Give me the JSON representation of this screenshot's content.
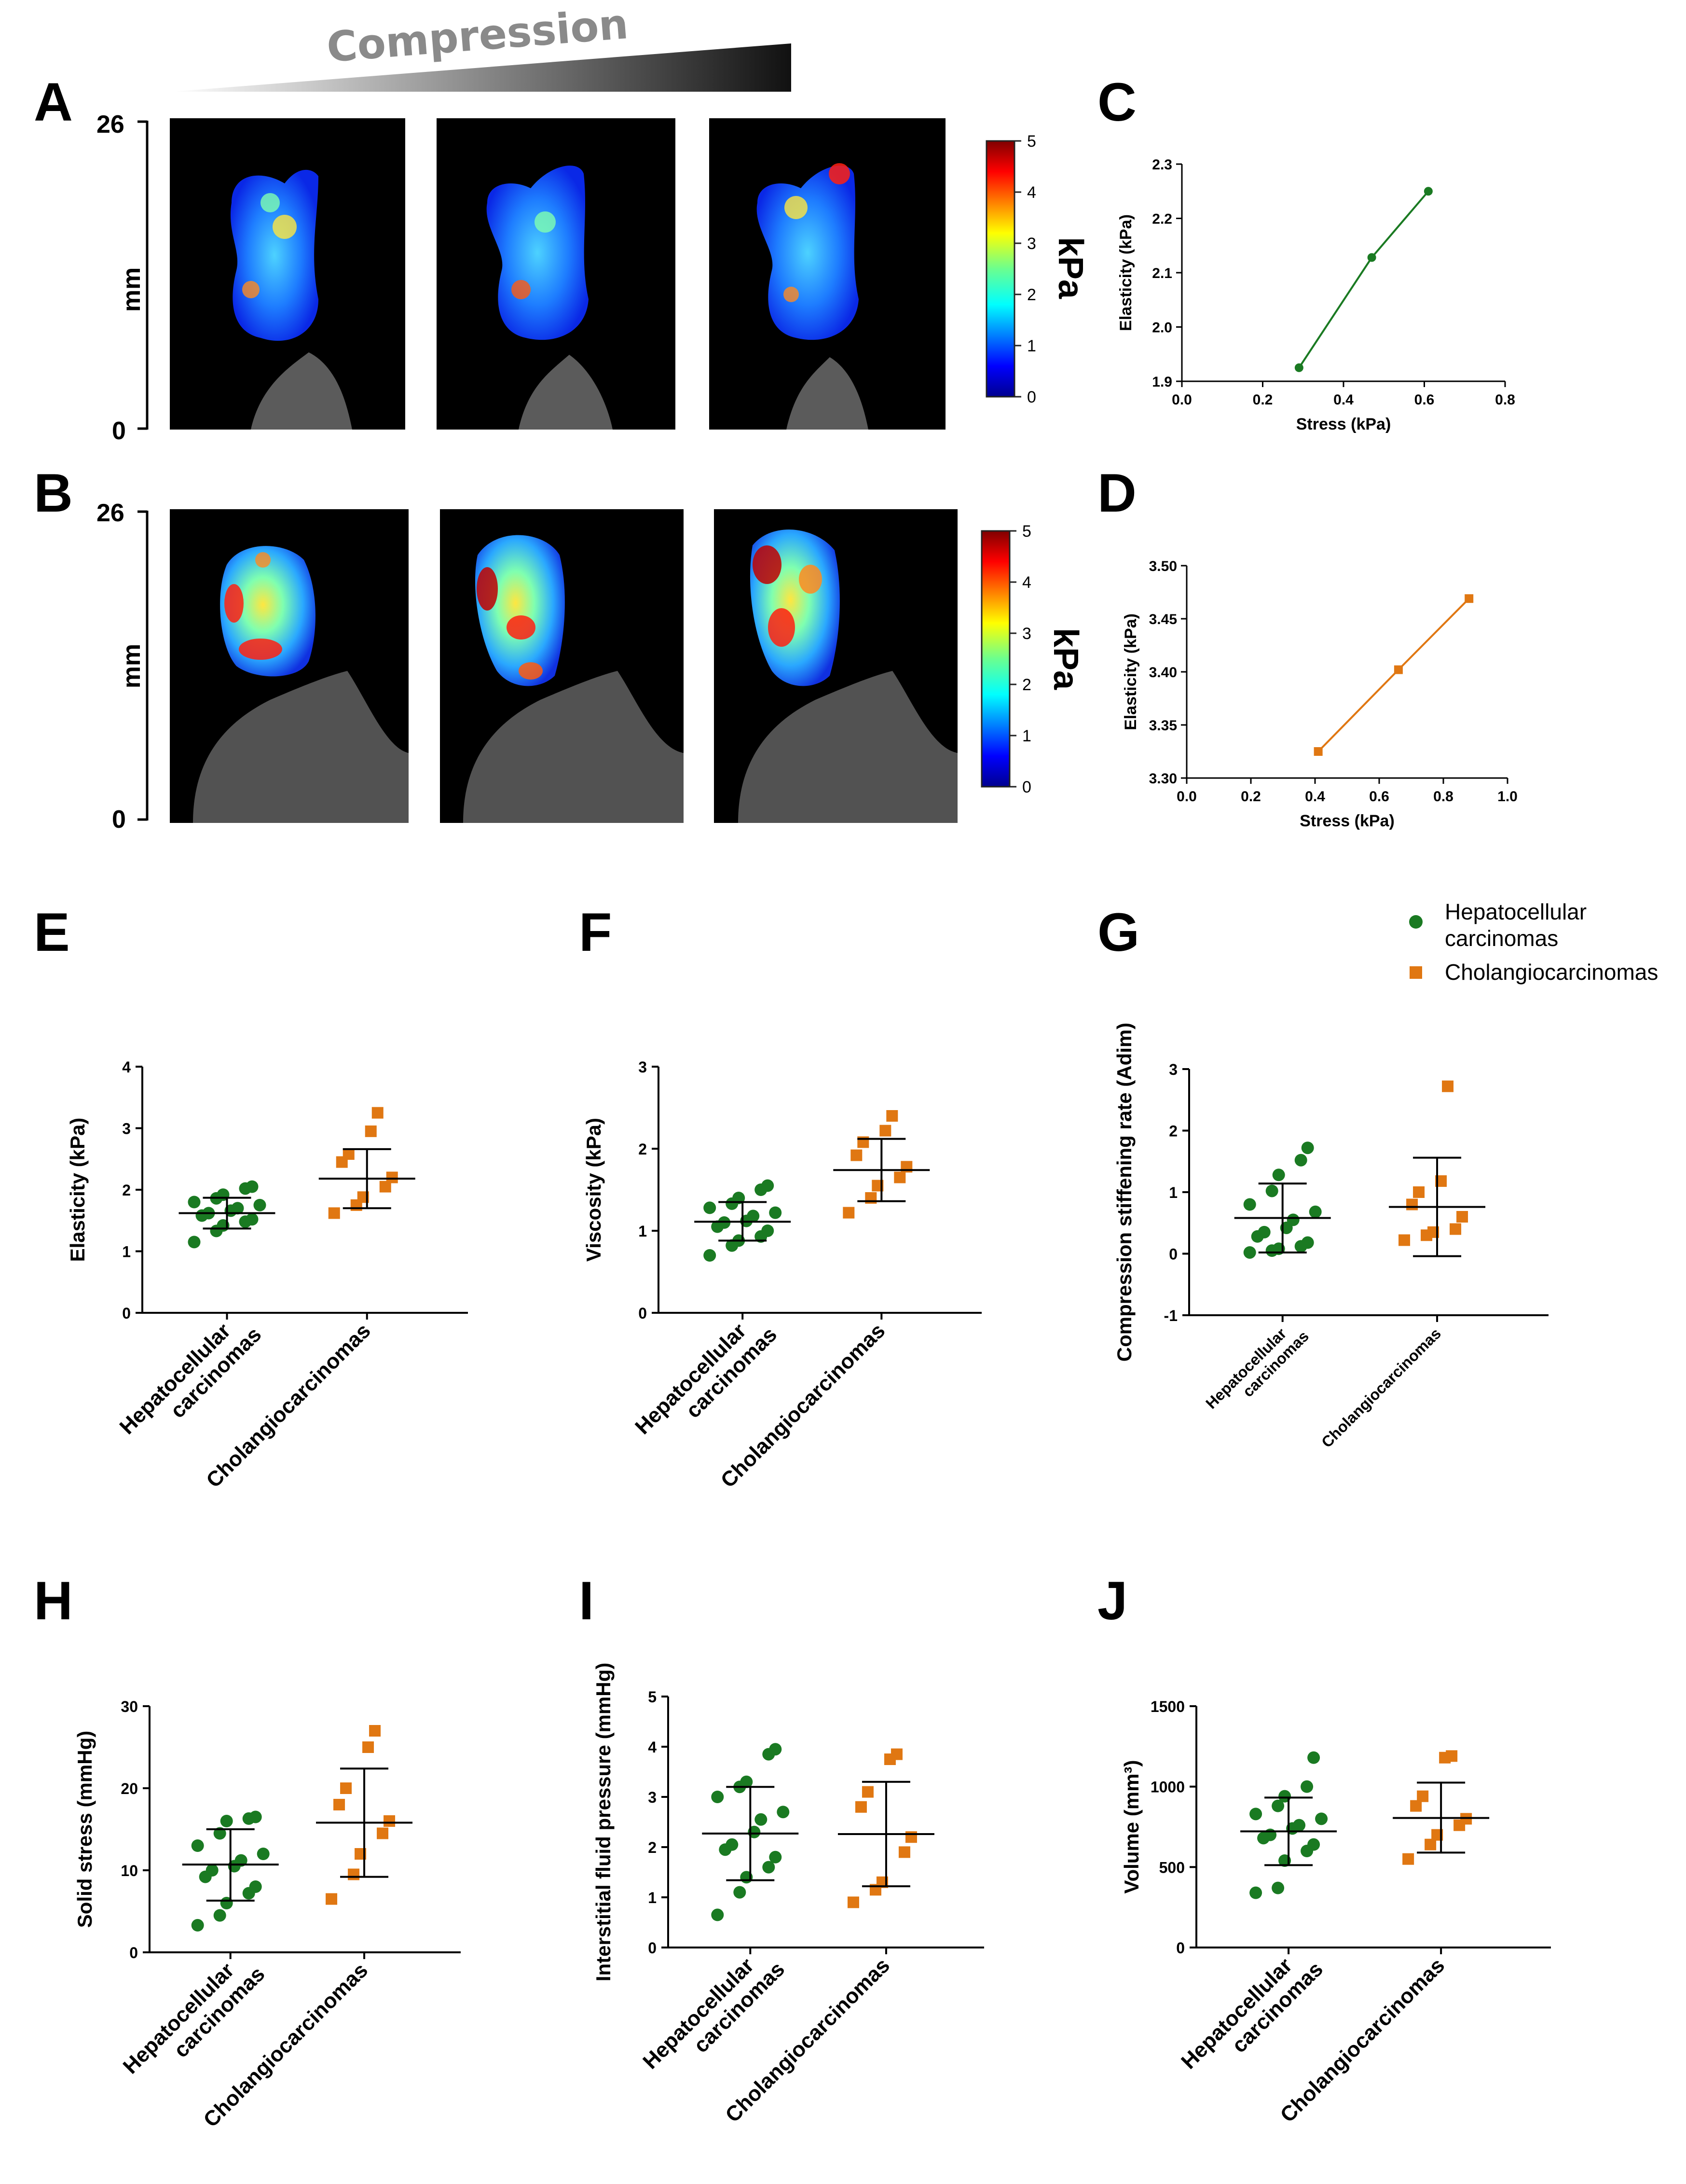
{
  "compression_label": "Compression",
  "panel_letters": [
    "A",
    "B",
    "C",
    "D",
    "E",
    "F",
    "G",
    "H",
    "I",
    "J"
  ],
  "elastography": {
    "axis_label": "mm",
    "axis_top": "26",
    "axis_bottom": "0",
    "colorbar_unit": "kPa",
    "colorbar_ticks": [
      "0",
      "1",
      "2",
      "3",
      "4",
      "5"
    ],
    "rows": [
      {
        "name": "hepatocellular",
        "images": 3
      },
      {
        "name": "cholangiocarcinoma",
        "images": 3
      }
    ]
  },
  "legend": {
    "hcc": "Hepatocellular carcinomas",
    "hcc_line1": "Hepatocellular",
    "hcc_line2": "carcinomas",
    "cca": "Cholangiocarcinomas"
  },
  "colors": {
    "hcc": "#1a7a22",
    "cca": "#e07712",
    "line_c": "#1a7a22",
    "line_d": "#e07712"
  },
  "chart_data": [
    {
      "id": "C",
      "type": "line",
      "xlabel": "Stress (kPa)",
      "ylabel": "Elasticity (kPa)",
      "xlim": [
        0,
        0.8
      ],
      "ylim": [
        1.9,
        2.3
      ],
      "xticks": [
        "0.0",
        "0.2",
        "0.4",
        "0.6",
        "0.8"
      ],
      "xtick_values": [
        0,
        0.2,
        0.4,
        0.6,
        0.8
      ],
      "yticks": [
        "1.9",
        "2.0",
        "2.1",
        "2.2",
        "2.3"
      ],
      "ytick_values": [
        1.9,
        2.0,
        2.1,
        2.2,
        2.3
      ],
      "marker": "circle",
      "color": "#1a7a22",
      "x": [
        0.29,
        0.47,
        0.61
      ],
      "y": [
        1.925,
        2.128,
        2.25
      ]
    },
    {
      "id": "D",
      "type": "line",
      "xlabel": "Stress (kPa)",
      "ylabel": "Elasticity (kPa)",
      "xlim": [
        0,
        1.0
      ],
      "ylim": [
        3.3,
        3.5
      ],
      "xticks": [
        "0.0",
        "0.2",
        "0.4",
        "0.6",
        "0.8",
        "1.0"
      ],
      "xtick_values": [
        0,
        0.2,
        0.4,
        0.6,
        0.8,
        1.0
      ],
      "yticks": [
        "3.30",
        "3.35",
        "3.40",
        "3.45",
        "3.50"
      ],
      "ytick_values": [
        3.3,
        3.35,
        3.4,
        3.45,
        3.5
      ],
      "marker": "square",
      "color": "#e07712",
      "x": [
        0.41,
        0.66,
        0.88
      ],
      "y": [
        3.325,
        3.402,
        3.469
      ]
    },
    {
      "id": "E",
      "type": "scatter",
      "ylabel": "Elasticity (kPa)",
      "ylim": [
        0,
        4
      ],
      "yticks": [
        "0",
        "1",
        "2",
        "3",
        "4"
      ],
      "ytick_values": [
        0,
        1,
        2,
        3,
        4
      ],
      "categories": [
        "Hepatocellular carcinomas",
        "Cholangiocarcinomas"
      ],
      "groups": [
        {
          "name": "Hepatocellular carcinomas",
          "mean": 1.62,
          "sd_low": 1.37,
          "sd_high": 1.87,
          "values": [
            1.15,
            1.33,
            1.42,
            1.48,
            1.52,
            1.58,
            1.62,
            1.66,
            1.7,
            1.75,
            1.8,
            1.86,
            1.92,
            2.02,
            2.05
          ]
        },
        {
          "name": "Cholangiocarcinomas",
          "mean": 2.18,
          "sd_low": 1.7,
          "sd_high": 2.66,
          "values": [
            1.62,
            1.75,
            1.88,
            2.05,
            2.2,
            2.45,
            2.58,
            2.95,
            3.25
          ]
        }
      ]
    },
    {
      "id": "F",
      "type": "scatter",
      "ylabel": "Viscosity (kPa)",
      "ylim": [
        0,
        3
      ],
      "yticks": [
        "0",
        "1",
        "2",
        "3"
      ],
      "ytick_values": [
        0,
        1,
        2,
        3
      ],
      "categories": [
        "Hepatocellular carcinomas",
        "Cholangiocarcinomas"
      ],
      "groups": [
        {
          "name": "Hepatocellular carcinomas",
          "mean": 1.11,
          "sd_low": 0.88,
          "sd_high": 1.35,
          "values": [
            0.7,
            0.82,
            0.88,
            0.93,
            1.0,
            1.05,
            1.1,
            1.12,
            1.18,
            1.22,
            1.28,
            1.33,
            1.4,
            1.5,
            1.55
          ]
        },
        {
          "name": "Cholangiocarcinomas",
          "mean": 1.74,
          "sd_low": 1.36,
          "sd_high": 2.12,
          "values": [
            1.22,
            1.4,
            1.55,
            1.65,
            1.78,
            1.92,
            2.08,
            2.22,
            2.4
          ]
        }
      ]
    },
    {
      "id": "G",
      "type": "scatter",
      "ylabel": "Compression stiffening rate (Adim)",
      "ylim": [
        -1,
        3
      ],
      "yticks": [
        "-1",
        "0",
        "1",
        "2",
        "3"
      ],
      "ytick_values": [
        -1,
        0,
        1,
        2,
        3
      ],
      "categories": [
        "Hepatocellular carcinomas",
        "Cholangiocarcinomas"
      ],
      "groups": [
        {
          "name": "Hepatocellular carcinomas",
          "mean": 0.58,
          "sd_low": 0.02,
          "sd_high": 1.14,
          "values": [
            0.02,
            0.05,
            0.08,
            0.12,
            0.18,
            0.28,
            0.35,
            0.42,
            0.55,
            0.68,
            0.8,
            1.02,
            1.28,
            1.52,
            1.72
          ]
        },
        {
          "name": "Cholangiocarcinomas",
          "mean": 0.76,
          "sd_low": -0.04,
          "sd_high": 1.56,
          "values": [
            0.22,
            0.3,
            0.35,
            0.4,
            0.6,
            0.8,
            1.0,
            1.18,
            2.72
          ]
        }
      ]
    },
    {
      "id": "H",
      "type": "scatter",
      "ylabel": "Solid stress (mmHg)",
      "ylim": [
        0,
        30
      ],
      "yticks": [
        "0",
        "10",
        "20",
        "30"
      ],
      "ytick_values": [
        0,
        10,
        20,
        30
      ],
      "categories": [
        "Hepatocellular carcinomas",
        "Cholangiocarcinomas"
      ],
      "groups": [
        {
          "name": "Hepatocellular carcinomas",
          "mean": 10.7,
          "sd_low": 6.3,
          "sd_high": 15.0,
          "values": [
            3.3,
            4.5,
            6.0,
            7.2,
            8.0,
            9.2,
            10.0,
            10.5,
            11.2,
            12.0,
            13.0,
            14.5,
            16.0,
            16.3,
            16.5
          ]
        },
        {
          "name": "Cholangiocarcinomas",
          "mean": 15.8,
          "sd_low": 9.2,
          "sd_high": 22.4,
          "values": [
            6.5,
            9.5,
            12.0,
            14.5,
            16.0,
            18.0,
            20.0,
            25.0,
            27.0
          ]
        }
      ]
    },
    {
      "id": "I",
      "type": "scatter",
      "ylabel": "Interstitial fluid pressure (mmHg)",
      "ylim": [
        0,
        5
      ],
      "yticks": [
        "0",
        "1",
        "2",
        "3",
        "4",
        "5"
      ],
      "ytick_values": [
        0,
        1,
        2,
        3,
        4,
        5
      ],
      "categories": [
        "Hepatocellular carcinomas",
        "Cholangiocarcinomas"
      ],
      "groups": [
        {
          "name": "Hepatocellular carcinomas",
          "mean": 2.27,
          "sd_low": 1.34,
          "sd_high": 3.2,
          "values": [
            0.65,
            1.1,
            1.4,
            1.6,
            1.8,
            1.95,
            2.05,
            2.3,
            2.55,
            2.7,
            3.0,
            3.2,
            3.3,
            3.85,
            3.95
          ]
        },
        {
          "name": "Cholangiocarcinomas",
          "mean": 2.26,
          "sd_low": 1.22,
          "sd_high": 3.3,
          "values": [
            0.9,
            1.15,
            1.3,
            1.9,
            2.2,
            2.8,
            3.1,
            3.75,
            3.85
          ]
        }
      ]
    },
    {
      "id": "J",
      "type": "scatter",
      "ylabel": "Volume (mm³)",
      "ylim": [
        0,
        1500
      ],
      "yticks": [
        "0",
        "500",
        "1000",
        "1500"
      ],
      "ytick_values": [
        0,
        500,
        1000,
        1500
      ],
      "categories": [
        "Hepatocellular carcinomas",
        "Cholangiocarcinomas"
      ],
      "groups": [
        {
          "name": "Hepatocellular carcinomas",
          "mean": 722,
          "sd_low": 512,
          "sd_high": 932,
          "values": [
            340,
            370,
            540,
            600,
            640,
            680,
            700,
            740,
            760,
            800,
            830,
            880,
            940,
            1000,
            1180
          ]
        },
        {
          "name": "Cholangiocarcinomas",
          "mean": 805,
          "sd_low": 590,
          "sd_high": 1025,
          "values": [
            550,
            640,
            700,
            760,
            800,
            880,
            940,
            1180,
            1190
          ]
        }
      ]
    }
  ]
}
